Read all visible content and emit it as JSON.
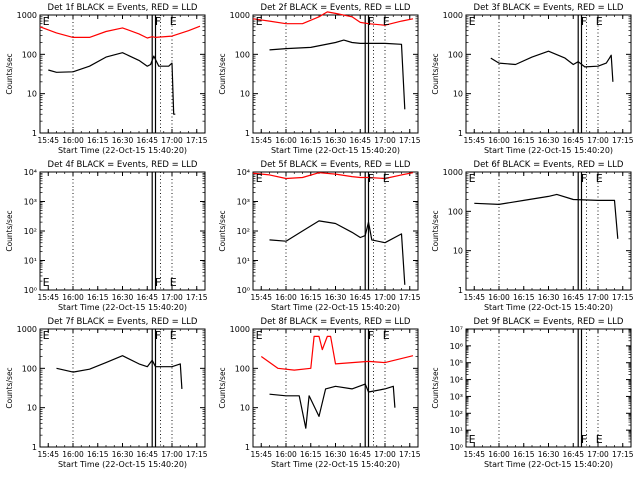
{
  "x_tick_labels": [
    "15:45",
    "16:00",
    "16:15",
    "16:30",
    "16:45",
    "17:00",
    "17:15"
  ],
  "x_label": "Start Time (22-Oct-15 15:40:20)",
  "y_label": "Counts/sec",
  "colors": {
    "events": "#000000",
    "lld": "#ff0000",
    "axes": "#000000"
  },
  "chart_data": [
    {
      "type": "line",
      "title": "Det 1f BLACK = Events, RED = LLD",
      "yscale": "log",
      "ylim": [
        1,
        1000
      ],
      "y_tick_labels": [
        "1",
        "10",
        "100",
        "1000"
      ],
      "xlim": [
        "15:40",
        "17:20"
      ],
      "dotted_times": [
        "16:00",
        "16:53",
        "17:00"
      ],
      "solid_times": [
        "16:48",
        "16:50"
      ],
      "markers": [
        {
          "text": "E",
          "t": "15:41"
        },
        {
          "text": "F",
          "t": "16:49"
        },
        {
          "text": "E",
          "t": "16:58"
        }
      ],
      "series": [
        {
          "name": "LLD",
          "color": "#ff0000",
          "x": [
            "15:40",
            "15:50",
            "16:00",
            "16:10",
            "16:20",
            "16:30",
            "16:40",
            "16:45",
            "16:48",
            "16:50",
            "17:00",
            "17:10",
            "17:17"
          ],
          "y": [
            500,
            350,
            270,
            270,
            380,
            470,
            330,
            260,
            280,
            270,
            290,
            400,
            520
          ]
        },
        {
          "name": "Events",
          "color": "#000000",
          "x": [
            "15:45",
            "15:50",
            "16:00",
            "16:10",
            "16:20",
            "16:30",
            "16:40",
            "16:45",
            "16:47",
            "16:49",
            "16:52",
            "16:58",
            "17:00",
            "17:01",
            "17:02"
          ],
          "y": [
            40,
            35,
            36,
            50,
            85,
            110,
            70,
            50,
            55,
            90,
            50,
            50,
            60,
            3,
            3
          ]
        }
      ]
    },
    {
      "type": "line",
      "title": "Det 2f BLACK = Events, RED = LLD",
      "yscale": "log",
      "ylim": [
        1,
        1000
      ],
      "y_tick_labels": [
        "1",
        "10",
        "100",
        "1000"
      ],
      "xlim": [
        "15:40",
        "17:20"
      ],
      "dotted_times": [
        "16:00",
        "16:53",
        "17:00"
      ],
      "solid_times": [
        "16:48",
        "16:50"
      ],
      "markers": [
        {
          "text": "E",
          "t": "15:41"
        },
        {
          "text": "F",
          "t": "16:49"
        },
        {
          "text": "E",
          "t": "16:58"
        }
      ],
      "series": [
        {
          "name": "LLD",
          "color": "#ff0000",
          "x": [
            "15:40",
            "15:50",
            "16:00",
            "16:10",
            "16:20",
            "16:25",
            "16:30",
            "16:40",
            "16:45",
            "16:50",
            "17:00",
            "17:10",
            "17:17"
          ],
          "y": [
            800,
            700,
            600,
            600,
            900,
            1200,
            1100,
            900,
            650,
            600,
            550,
            700,
            800
          ]
        },
        {
          "name": "Events",
          "color": "#000000",
          "x": [
            "15:50",
            "16:00",
            "16:15",
            "16:30",
            "16:35",
            "16:40",
            "16:45",
            "16:50",
            "17:00",
            "17:10",
            "17:12"
          ],
          "y": [
            130,
            140,
            150,
            200,
            230,
            200,
            190,
            190,
            190,
            180,
            4
          ]
        }
      ]
    },
    {
      "type": "line",
      "title": "Det 3f BLACK = Events, RED = LLD",
      "yscale": "log",
      "ylim": [
        1,
        1000
      ],
      "y_tick_labels": [
        "1",
        "10",
        "100",
        "1000"
      ],
      "xlim": [
        "15:40",
        "17:20"
      ],
      "dotted_times": [
        "16:00",
        "16:53",
        "17:00"
      ],
      "solid_times": [
        "16:48",
        "16:50"
      ],
      "markers": [
        {
          "text": "E",
          "t": "15:41"
        },
        {
          "text": "F",
          "t": "16:49"
        },
        {
          "text": "E",
          "t": "16:58"
        }
      ],
      "series": [
        {
          "name": "Events",
          "color": "#000000",
          "x": [
            "15:55",
            "16:00",
            "16:10",
            "16:20",
            "16:30",
            "16:40",
            "16:45",
            "16:48",
            "16:52",
            "17:00",
            "17:05",
            "17:07",
            "17:08",
            "17:09"
          ],
          "y": [
            80,
            60,
            55,
            85,
            120,
            80,
            55,
            65,
            48,
            50,
            60,
            80,
            95,
            20
          ]
        }
      ]
    },
    {
      "type": "line",
      "title": "Det 4f BLACK = Events, RED = LLD",
      "yscale": "log",
      "ylim": [
        1,
        10000
      ],
      "y_tick_labels": [
        "10⁰",
        "10¹",
        "10²",
        "10³",
        "10⁴"
      ],
      "xlim": [
        "15:40",
        "17:20"
      ],
      "dotted_times": [
        "16:00",
        "16:53",
        "17:00"
      ],
      "solid_times": [
        "16:48",
        "16:50"
      ],
      "markers": [
        {
          "text": "E",
          "t": "15:41"
        },
        {
          "text": "F",
          "t": "16:49"
        },
        {
          "text": "E",
          "t": "16:58"
        }
      ],
      "series": []
    },
    {
      "type": "line",
      "title": "Det 5f BLACK = Events, RED = LLD",
      "yscale": "log",
      "ylim": [
        1,
        10000
      ],
      "y_tick_labels": [
        "10⁰",
        "10¹",
        "10²",
        "10³",
        "10⁴"
      ],
      "xlim": [
        "15:40",
        "17:20"
      ],
      "dotted_times": [
        "16:00",
        "16:53",
        "17:00"
      ],
      "solid_times": [
        "16:48",
        "16:50"
      ],
      "markers": [
        {
          "text": "E",
          "t": "15:41"
        },
        {
          "text": "F",
          "t": "16:49"
        },
        {
          "text": "E",
          "t": "16:58"
        }
      ],
      "series": [
        {
          "name": "LLD",
          "color": "#ff0000",
          "x": [
            "15:40",
            "15:50",
            "16:00",
            "16:10",
            "16:20",
            "16:30",
            "16:40",
            "16:45",
            "16:50",
            "17:00",
            "17:10",
            "17:17"
          ],
          "y": [
            9000,
            8000,
            6000,
            6500,
            9500,
            8500,
            7000,
            6500,
            6500,
            6000,
            8000,
            9500
          ]
        },
        {
          "name": "Events",
          "color": "#000000",
          "x": [
            "15:50",
            "16:00",
            "16:10",
            "16:20",
            "16:30",
            "16:40",
            "16:45",
            "16:48",
            "16:50",
            "16:52",
            "17:00",
            "17:10",
            "17:12"
          ],
          "y": [
            50,
            45,
            100,
            220,
            180,
            90,
            60,
            70,
            200,
            50,
            40,
            80,
            1.5
          ]
        }
      ]
    },
    {
      "type": "line",
      "title": "Det 6f BLACK = Events, RED = LLD",
      "yscale": "log",
      "ylim": [
        1,
        1000
      ],
      "y_tick_labels": [
        "1",
        "10",
        "100",
        "1000"
      ],
      "xlim": [
        "15:40",
        "17:20"
      ],
      "dotted_times": [
        "16:00",
        "16:53",
        "17:00"
      ],
      "solid_times": [
        "16:48",
        "16:50"
      ],
      "markers": [
        {
          "text": "E",
          "t": "15:41"
        },
        {
          "text": "F",
          "t": "16:49"
        },
        {
          "text": "E",
          "t": "16:58"
        }
      ],
      "series": [
        {
          "name": "Events",
          "color": "#000000",
          "x": [
            "15:45",
            "16:00",
            "16:15",
            "16:30",
            "16:35",
            "16:45",
            "17:00",
            "17:10",
            "17:12"
          ],
          "y": [
            160,
            150,
            190,
            240,
            270,
            200,
            190,
            190,
            20
          ]
        }
      ]
    },
    {
      "type": "line",
      "title": "Det 7f BLACK = Events, RED = LLD",
      "yscale": "log",
      "ylim": [
        1,
        1000
      ],
      "y_tick_labels": [
        "1",
        "10",
        "100",
        "1000"
      ],
      "xlim": [
        "15:40",
        "17:20"
      ],
      "dotted_times": [
        "16:00",
        "16:53",
        "17:00"
      ],
      "solid_times": [
        "16:48",
        "16:50"
      ],
      "markers": [
        {
          "text": "E",
          "t": "15:41"
        },
        {
          "text": "F",
          "t": "16:49"
        },
        {
          "text": "E",
          "t": "16:58"
        }
      ],
      "series": [
        {
          "name": "Events",
          "color": "#000000",
          "x": [
            "15:50",
            "16:00",
            "16:10",
            "16:20",
            "16:30",
            "16:40",
            "16:45",
            "16:48",
            "16:50",
            "17:00",
            "17:05",
            "17:06"
          ],
          "y": [
            100,
            80,
            95,
            140,
            210,
            130,
            110,
            160,
            110,
            110,
            130,
            30
          ]
        }
      ]
    },
    {
      "type": "line",
      "title": "Det 8f BLACK = Events, RED = LLD",
      "yscale": "log",
      "ylim": [
        1,
        1000
      ],
      "y_tick_labels": [
        "1",
        "10",
        "100",
        "1000"
      ],
      "xlim": [
        "15:40",
        "17:20"
      ],
      "dotted_times": [
        "16:00",
        "16:53",
        "17:00"
      ],
      "solid_times": [
        "16:48",
        "16:50"
      ],
      "markers": [
        {
          "text": "E",
          "t": "15:41"
        },
        {
          "text": "F",
          "t": "16:49"
        },
        {
          "text": "E",
          "t": "16:58"
        }
      ],
      "series": [
        {
          "name": "LLD",
          "color": "#ff0000",
          "x": [
            "15:45",
            "15:55",
            "16:05",
            "16:15",
            "16:17",
            "16:20",
            "16:22",
            "16:25",
            "16:27",
            "16:30",
            "16:40",
            "16:50",
            "17:00",
            "17:17"
          ],
          "y": [
            200,
            100,
            90,
            100,
            650,
            650,
            300,
            650,
            650,
            130,
            140,
            150,
            140,
            210
          ]
        },
        {
          "name": "Events",
          "color": "#000000",
          "x": [
            "15:50",
            "16:00",
            "16:08",
            "16:12",
            "16:14",
            "16:20",
            "16:24",
            "16:30",
            "16:40",
            "16:48",
            "16:50",
            "17:00",
            "17:05",
            "17:06"
          ],
          "y": [
            22,
            20,
            20,
            3,
            20,
            6,
            30,
            35,
            30,
            40,
            25,
            30,
            35,
            10
          ]
        }
      ]
    },
    {
      "type": "line",
      "title": "Det 9f BLACK = Events, RED = LLD",
      "yscale": "log",
      "ylim": [
        1,
        10000000
      ],
      "y_tick_labels": [
        "10⁰",
        "10¹",
        "10²",
        "10³",
        "10⁴",
        "10⁵",
        "10⁶",
        "10⁷"
      ],
      "xlim": [
        "15:40",
        "17:20"
      ],
      "dotted_times": [
        "16:00",
        "16:53",
        "17:00"
      ],
      "solid_times": [
        "16:48",
        "16:50"
      ],
      "markers": [
        {
          "text": "E",
          "t": "15:41"
        },
        {
          "text": "F",
          "t": "16:49"
        },
        {
          "text": "E",
          "t": "16:58"
        }
      ],
      "series": []
    }
  ]
}
